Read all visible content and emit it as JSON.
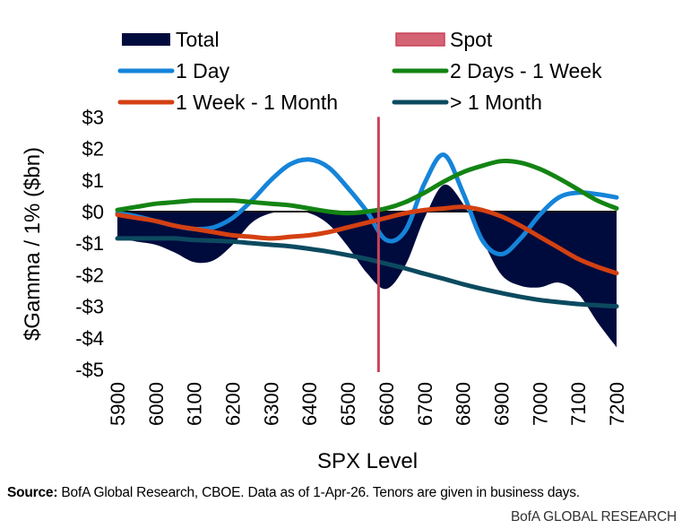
{
  "chart_data": {
    "type": "line",
    "title": "",
    "xlabel": "SPX Level",
    "ylabel": "$Gamma / 1% ($bn)",
    "x": [
      5900,
      5950,
      6000,
      6050,
      6100,
      6150,
      6200,
      6250,
      6300,
      6350,
      6400,
      6450,
      6500,
      6550,
      6600,
      6650,
      6700,
      6750,
      6800,
      6850,
      6900,
      6950,
      7000,
      7050,
      7100,
      7150,
      7200
    ],
    "xticks": [
      "5900",
      "6000",
      "6100",
      "6200",
      "6300",
      "6400",
      "6500",
      "6600",
      "6700",
      "6800",
      "6900",
      "7000",
      "7100",
      "7200"
    ],
    "xlim": [
      5900,
      7200
    ],
    "ylim": [
      -5,
      3
    ],
    "yticks": [
      "-$5",
      "-$4",
      "-$3",
      "-$2",
      "-$1",
      "$0",
      "$1",
      "$2",
      "$3"
    ],
    "ytick_values": [
      -5,
      -4,
      -3,
      -2,
      -1,
      0,
      1,
      2,
      3
    ],
    "grid": false,
    "legend": "top",
    "spot": {
      "name": "Spot",
      "x": 6580,
      "color": "#c8435a"
    },
    "series": [
      {
        "name": "Total",
        "kind": "area",
        "color": "#000b3d",
        "values": [
          -0.85,
          -0.95,
          -1.05,
          -1.3,
          -1.6,
          -1.55,
          -1.05,
          -0.35,
          -0.05,
          0.0,
          -0.05,
          -0.4,
          -1.1,
          -1.95,
          -2.45,
          -1.7,
          -0.2,
          0.85,
          0.25,
          -0.9,
          -2.0,
          -2.35,
          -2.4,
          -2.25,
          -2.6,
          -3.5,
          -4.3
        ]
      },
      {
        "name": "1 Day",
        "kind": "line",
        "color": "#1584d9",
        "values": [
          -0.05,
          -0.15,
          -0.3,
          -0.45,
          -0.55,
          -0.5,
          -0.2,
          0.35,
          1.0,
          1.5,
          1.65,
          1.4,
          0.75,
          0.0,
          -0.9,
          -0.6,
          0.9,
          1.8,
          0.6,
          -0.9,
          -1.35,
          -0.85,
          -0.1,
          0.45,
          0.6,
          0.55,
          0.45
        ]
      },
      {
        "name": "2 Days - 1 Week",
        "kind": "line",
        "color": "#138413",
        "values": [
          0.05,
          0.15,
          0.25,
          0.3,
          0.35,
          0.35,
          0.35,
          0.3,
          0.25,
          0.2,
          0.1,
          0.0,
          -0.05,
          0.0,
          0.1,
          0.3,
          0.6,
          0.95,
          1.25,
          1.45,
          1.6,
          1.55,
          1.35,
          1.05,
          0.7,
          0.35,
          0.1
        ]
      },
      {
        "name": "1 Week - 1 Month",
        "kind": "line",
        "color": "#d44011",
        "values": [
          -0.1,
          -0.2,
          -0.3,
          -0.45,
          -0.55,
          -0.65,
          -0.75,
          -0.8,
          -0.85,
          -0.8,
          -0.75,
          -0.65,
          -0.5,
          -0.35,
          -0.2,
          -0.05,
          0.05,
          0.1,
          0.15,
          0.05,
          -0.15,
          -0.45,
          -0.8,
          -1.15,
          -1.5,
          -1.75,
          -1.95
        ]
      },
      {
        "name": "> 1 Month",
        "kind": "line",
        "color": "#0c4a5f",
        "values": [
          -0.85,
          -0.85,
          -0.85,
          -0.85,
          -0.9,
          -0.92,
          -0.95,
          -1.0,
          -1.05,
          -1.1,
          -1.18,
          -1.27,
          -1.38,
          -1.5,
          -1.65,
          -1.8,
          -1.97,
          -2.13,
          -2.3,
          -2.45,
          -2.58,
          -2.7,
          -2.8,
          -2.87,
          -2.93,
          -2.97,
          -3.0
        ]
      }
    ],
    "legend_entries": [
      {
        "label": "Total",
        "kind": "box",
        "color": "#000b3d"
      },
      {
        "label": "Spot",
        "kind": "box",
        "color": "#d46374",
        "border": "#c8435a"
      },
      {
        "label": "1 Day",
        "kind": "line",
        "color": "#1584d9"
      },
      {
        "label": "2 Days - 1 Week",
        "kind": "line",
        "color": "#138413"
      },
      {
        "label": "1 Week - 1 Month",
        "kind": "line",
        "color": "#d44011"
      },
      {
        "label": "> 1 Month",
        "kind": "line",
        "color": "#0c4a5f"
      }
    ]
  },
  "footer": {
    "source_label": "Source:",
    "source_text": " BofA Global Research, CBOE. Data as of 1-Apr-26. Tenors are given in business days.",
    "brand": "BofA GLOBAL RESEARCH"
  }
}
